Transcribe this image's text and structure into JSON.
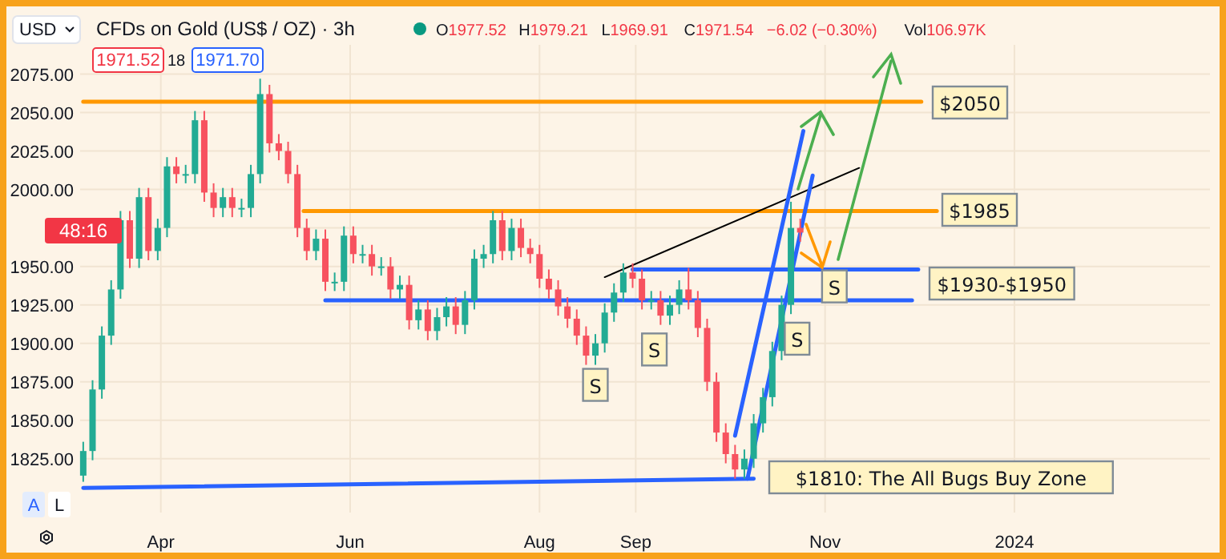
{
  "chart_data": {
    "type": "candlestick",
    "title": "CFDs on Gold (US$ / OZ) · 3h",
    "x": [
      "2023-03-07",
      "2023-03-10",
      "2023-03-13",
      "2023-03-16",
      "2023-03-19",
      "2023-03-22",
      "2023-03-25",
      "2023-03-28",
      "2023-03-31",
      "2023-04-03",
      "2023-04-06",
      "2023-04-09",
      "2023-04-12",
      "2023-04-15",
      "2023-04-18",
      "2023-04-21",
      "2023-04-24",
      "2023-04-27",
      "2023-04-30",
      "2023-05-03",
      "2023-05-06",
      "2023-05-09",
      "2023-05-12",
      "2023-05-15",
      "2023-05-18",
      "2023-05-21",
      "2023-05-24",
      "2023-05-27",
      "2023-05-30",
      "2023-06-02",
      "2023-06-05",
      "2023-06-08",
      "2023-06-11",
      "2023-06-14",
      "2023-06-17",
      "2023-06-20",
      "2023-06-23",
      "2023-06-26",
      "2023-06-29",
      "2023-07-02",
      "2023-07-05",
      "2023-07-08",
      "2023-07-11",
      "2023-07-14",
      "2023-07-17",
      "2023-07-20",
      "2023-07-23",
      "2023-07-26",
      "2023-07-29",
      "2023-08-01",
      "2023-08-04",
      "2023-08-07",
      "2023-08-10",
      "2023-08-13",
      "2023-08-16",
      "2023-08-19",
      "2023-08-22",
      "2023-08-25",
      "2023-08-28",
      "2023-08-31",
      "2023-09-03",
      "2023-09-06",
      "2023-09-09",
      "2023-09-12",
      "2023-09-15",
      "2023-09-18",
      "2023-09-21",
      "2023-09-24",
      "2023-09-27",
      "2023-09-30",
      "2023-10-03",
      "2023-10-06",
      "2023-10-09",
      "2023-10-12",
      "2023-10-15",
      "2023-10-18",
      "2023-10-21",
      "2023-10-24"
    ],
    "ohlc": [
      [
        1814,
        1836,
        1810,
        1830
      ],
      [
        1830,
        1876,
        1824,
        1870
      ],
      [
        1870,
        1911,
        1864,
        1905
      ],
      [
        1905,
        1941,
        1899,
        1935
      ],
      [
        1935,
        1986,
        1929,
        1980
      ],
      [
        1980,
        1986,
        1949,
        1955
      ],
      [
        1955,
        2001,
        1949,
        1995
      ],
      [
        1995,
        2001,
        1954,
        1960
      ],
      [
        1960,
        1981,
        1954,
        1975
      ],
      [
        1975,
        2021,
        1969,
        2015
      ],
      [
        2015,
        2021,
        2004,
        2010
      ],
      [
        2010,
        2016,
        2004,
        2010
      ],
      [
        2010,
        2051,
        2004,
        2045
      ],
      [
        2045,
        2051,
        1992,
        1998
      ],
      [
        1998,
        2004,
        1982,
        1988
      ],
      [
        1988,
        2001,
        1982,
        1995
      ],
      [
        1995,
        2001,
        1982,
        1988
      ],
      [
        1988,
        1994,
        1982,
        1988
      ],
      [
        1988,
        2016,
        1982,
        2010
      ],
      [
        2010,
        2072,
        2004,
        2062
      ],
      [
        2062,
        2068,
        2024,
        2030
      ],
      [
        2030,
        2036,
        2019,
        2025
      ],
      [
        2025,
        2031,
        2004,
        2010
      ],
      [
        2010,
        2016,
        1969,
        1975
      ],
      [
        1975,
        1981,
        1954,
        1960
      ],
      [
        1960,
        1974,
        1954,
        1968
      ],
      [
        1968,
        1974,
        1934,
        1940
      ],
      [
        1940,
        1946,
        1934,
        1940
      ],
      [
        1940,
        1976,
        1934,
        1970
      ],
      [
        1970,
        1976,
        1952,
        1958
      ],
      [
        1958,
        1964,
        1952,
        1958
      ],
      [
        1958,
        1964,
        1944,
        1950
      ],
      [
        1950,
        1956,
        1944,
        1950
      ],
      [
        1950,
        1956,
        1929,
        1935
      ],
      [
        1935,
        1944,
        1929,
        1938
      ],
      [
        1938,
        1944,
        1909,
        1915
      ],
      [
        1915,
        1928,
        1909,
        1922
      ],
      [
        1922,
        1928,
        1902,
        1908
      ],
      [
        1908,
        1923,
        1902,
        1917
      ],
      [
        1917,
        1930,
        1911,
        1924
      ],
      [
        1924,
        1930,
        1906,
        1912
      ],
      [
        1912,
        1934,
        1906,
        1928
      ],
      [
        1928,
        1961,
        1922,
        1955
      ],
      [
        1955,
        1964,
        1949,
        1958
      ],
      [
        1958,
        1986,
        1952,
        1980
      ],
      [
        1980,
        1986,
        1954,
        1960
      ],
      [
        1960,
        1981,
        1954,
        1975
      ],
      [
        1975,
        1981,
        1956,
        1962
      ],
      [
        1962,
        1968,
        1952,
        1958
      ],
      [
        1958,
        1964,
        1936,
        1942
      ],
      [
        1942,
        1948,
        1929,
        1935
      ],
      [
        1935,
        1941,
        1918,
        1924
      ],
      [
        1924,
        1930,
        1910,
        1916
      ],
      [
        1916,
        1922,
        1899,
        1905
      ],
      [
        1905,
        1911,
        1886,
        1892
      ],
      [
        1892,
        1906,
        1886,
        1900
      ],
      [
        1900,
        1926,
        1894,
        1920
      ],
      [
        1920,
        1939,
        1914,
        1933
      ],
      [
        1933,
        1952,
        1927,
        1946
      ],
      [
        1946,
        1952,
        1936,
        1942
      ],
      [
        1942,
        1948,
        1922,
        1928
      ],
      [
        1928,
        1934,
        1922,
        1928
      ],
      [
        1928,
        1934,
        1912,
        1918
      ],
      [
        1918,
        1931,
        1912,
        1925
      ],
      [
        1925,
        1941,
        1919,
        1935
      ],
      [
        1935,
        1949,
        1922,
        1928
      ],
      [
        1928,
        1934,
        1904,
        1910
      ],
      [
        1910,
        1916,
        1869,
        1875
      ],
      [
        1875,
        1881,
        1836,
        1842
      ],
      [
        1842,
        1848,
        1822,
        1828
      ],
      [
        1828,
        1834,
        1812,
        1818
      ],
      [
        1818,
        1831,
        1812,
        1825
      ],
      [
        1825,
        1854,
        1819,
        1848
      ],
      [
        1848,
        1871,
        1842,
        1865
      ],
      [
        1865,
        1901,
        1859,
        1895
      ],
      [
        1895,
        1931,
        1889,
        1925
      ],
      [
        1925,
        1992,
        1919,
        1975
      ],
      [
        1975,
        1981,
        1966,
        1972
      ]
    ],
    "series": [
      {
        "type": "line",
        "color": "#ff9800",
        "x": [
          "2023-03-07",
          "2023-12-02"
        ],
        "values": [
          2057,
          2057
        ]
      },
      {
        "type": "line",
        "color": "#ff9800",
        "x": [
          "2023-05-17",
          "2023-12-07"
        ],
        "values": [
          1986,
          1986
        ]
      },
      {
        "type": "line",
        "color": "#2962ff",
        "x": [
          "2023-08-31",
          "2023-12-01"
        ],
        "values": [
          1948,
          1948
        ]
      },
      {
        "type": "line",
        "color": "#2962ff",
        "x": [
          "2023-05-24",
          "2023-11-29"
        ],
        "values": [
          1928,
          1928
        ]
      },
      {
        "type": "line",
        "color": "#2962ff",
        "x": [
          "2023-03-07",
          "2023-10-09"
        ],
        "values": [
          1806,
          1812
        ]
      },
      {
        "type": "line",
        "color": "#000000",
        "x": [
          "2023-08-22",
          "2023-11-12"
        ],
        "values": [
          1943,
          2014
        ]
      },
      {
        "type": "line",
        "color": "#2962ff",
        "x": [
          "2023-10-03",
          "2023-10-25"
        ],
        "values": [
          1840,
          2038
        ]
      },
      {
        "type": "line",
        "color": "#2962ff",
        "x": [
          "2023-10-07",
          "2023-10-28"
        ],
        "values": [
          1812,
          2009
        ]
      }
    ],
    "xlim": [
      "2023-03-06",
      "2024-03-04"
    ],
    "xticks": [
      {
        "value": "2023-04",
        "label": "Apr"
      },
      {
        "value": "2023-06",
        "label": "Jun"
      },
      {
        "value": "2023-08",
        "label": "Aug"
      },
      {
        "value": "2023-09",
        "label": "Sep"
      },
      {
        "value": "2023-11",
        "label": "Nov"
      },
      {
        "value": "2024-01",
        "label": "2024"
      }
    ],
    "ylim": [
      1790,
      2094
    ],
    "yticks": [
      {
        "value": 1825,
        "label": "1825.00"
      },
      {
        "value": 1850,
        "label": "1850.00"
      },
      {
        "value": 1875,
        "label": "1875.00"
      },
      {
        "value": 1900,
        "label": "1900.00"
      },
      {
        "value": 1925,
        "label": "1925.00"
      },
      {
        "value": 1950,
        "label": "1950.00"
      },
      {
        "value": 1975,
        "label": null
      },
      {
        "value": 2000,
        "label": "2000.00"
      },
      {
        "value": 2025,
        "label": "2025.00"
      },
      {
        "value": 2050,
        "label": "2050.00"
      },
      {
        "value": 2075,
        "label": "2075.00"
      }
    ],
    "grid": true,
    "annotations": [
      "USD",
      "O1977.52",
      "H1979.21",
      "L1969.91",
      "C1971.54",
      "−6.02 (−0.30%)",
      "Vol106.97K",
      "1971.52",
      "18",
      "1971.70",
      "48:16",
      "A",
      "L",
      "$2050",
      "$1985",
      "$1930-$1950",
      "$1810: The All Bugs Buy Zone",
      {
        "text": "S",
        "x": "2023-08-19",
        "y": 1873
      },
      {
        "text": "S",
        "x": "2023-09-07",
        "y": 1896
      },
      {
        "text": "S",
        "x": "2023-10-23",
        "y": 1903
      },
      {
        "text": "S",
        "x": "2023-11-04",
        "y": 1937
      }
    ]
  }
}
